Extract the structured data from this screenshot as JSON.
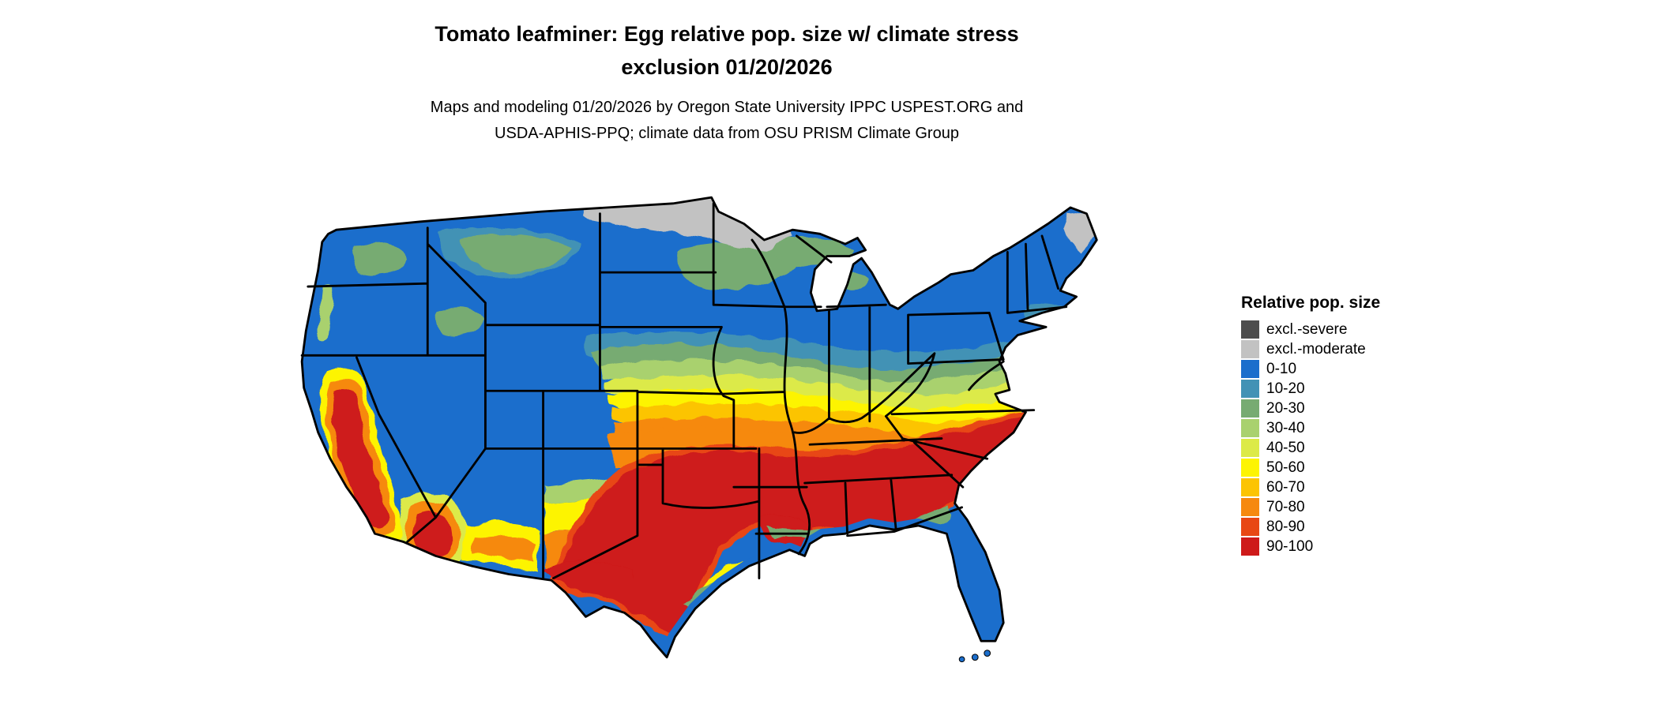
{
  "header": {
    "title_line1": "Tomato leafminer: Egg relative pop. size w/ climate stress",
    "title_line2": "exclusion 01/20/2026",
    "subtitle_line1": "Maps and modeling 01/20/2026 by Oregon State University IPPC USPEST.ORG and",
    "subtitle_line2": "USDA-APHIS-PPQ; climate data from OSU PRISM Climate Group"
  },
  "map": {
    "region": "Contiguous United States",
    "type": "choropleth",
    "border_color": "#000000",
    "background_color": "#ffffff"
  },
  "legend": {
    "title": "Relative pop. size",
    "items": [
      {
        "label": "excl.-severe",
        "color": "#4d4d4d"
      },
      {
        "label": "excl.-moderate",
        "color": "#c2c2c2"
      },
      {
        "label": "0-10",
        "color": "#1b6ecc"
      },
      {
        "label": "10-20",
        "color": "#4292b5"
      },
      {
        "label": "20-30",
        "color": "#77ab72"
      },
      {
        "label": "30-40",
        "color": "#a9d16e"
      },
      {
        "label": "40-50",
        "color": "#dcea48"
      },
      {
        "label": "50-60",
        "color": "#fdf403"
      },
      {
        "label": "60-70",
        "color": "#fcc403"
      },
      {
        "label": "70-80",
        "color": "#f6890f"
      },
      {
        "label": "80-90",
        "color": "#e84714"
      },
      {
        "label": "90-100",
        "color": "#ce1a1a"
      }
    ]
  }
}
